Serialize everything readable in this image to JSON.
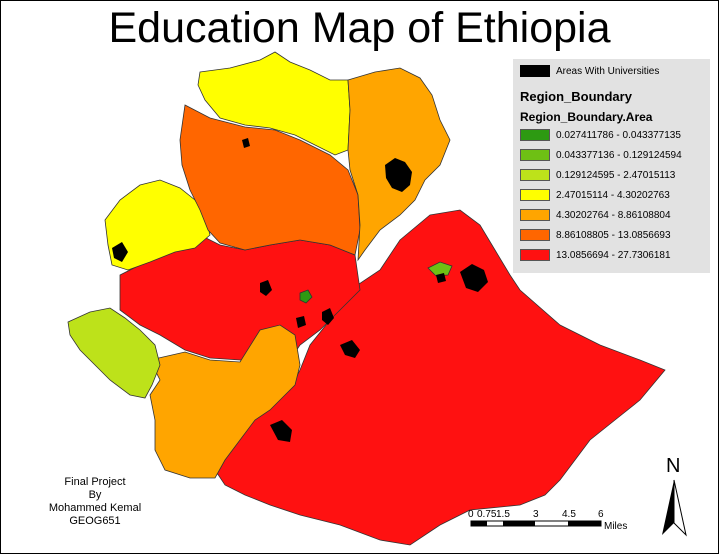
{
  "title": "Education Map of Ethiopia",
  "legend": {
    "universities_label": "Areas With Universities",
    "layer_name": "Region_Boundary",
    "field_name": "Region_Boundary.Area",
    "classes": [
      {
        "label": "0.027411786 - 0.043377135",
        "color": "#2d9a12"
      },
      {
        "label": "0.043377136 - 0.129124594",
        "color": "#6ec014"
      },
      {
        "label": "0.129124595 - 2.47015113",
        "color": "#bde21a"
      },
      {
        "label": "2.47015114 - 4.30202763",
        "color": "#ffff00"
      },
      {
        "label": "4.30202764 - 8.86108804",
        "color": "#ffa500"
      },
      {
        "label": "8.86108805 - 13.0856693",
        "color": "#ff6600"
      },
      {
        "label": "13.0856694 - 27.7306181",
        "color": "#ff1111"
      }
    ]
  },
  "credits": [
    "Final Project",
    "By",
    "Mohammed Kemal",
    "GEOG651"
  ],
  "scale": {
    "labels": [
      "0",
      "0.75",
      "1.5",
      "3",
      "4.5",
      "6"
    ],
    "unit": "Miles"
  },
  "north_label": "N",
  "colors": {
    "red": "#ff1111",
    "orange_red": "#ff6600",
    "orange": "#ffa500",
    "yellow": "#ffff00",
    "lime": "#bde21a",
    "green": "#2d9a12",
    "university": "#000000"
  }
}
